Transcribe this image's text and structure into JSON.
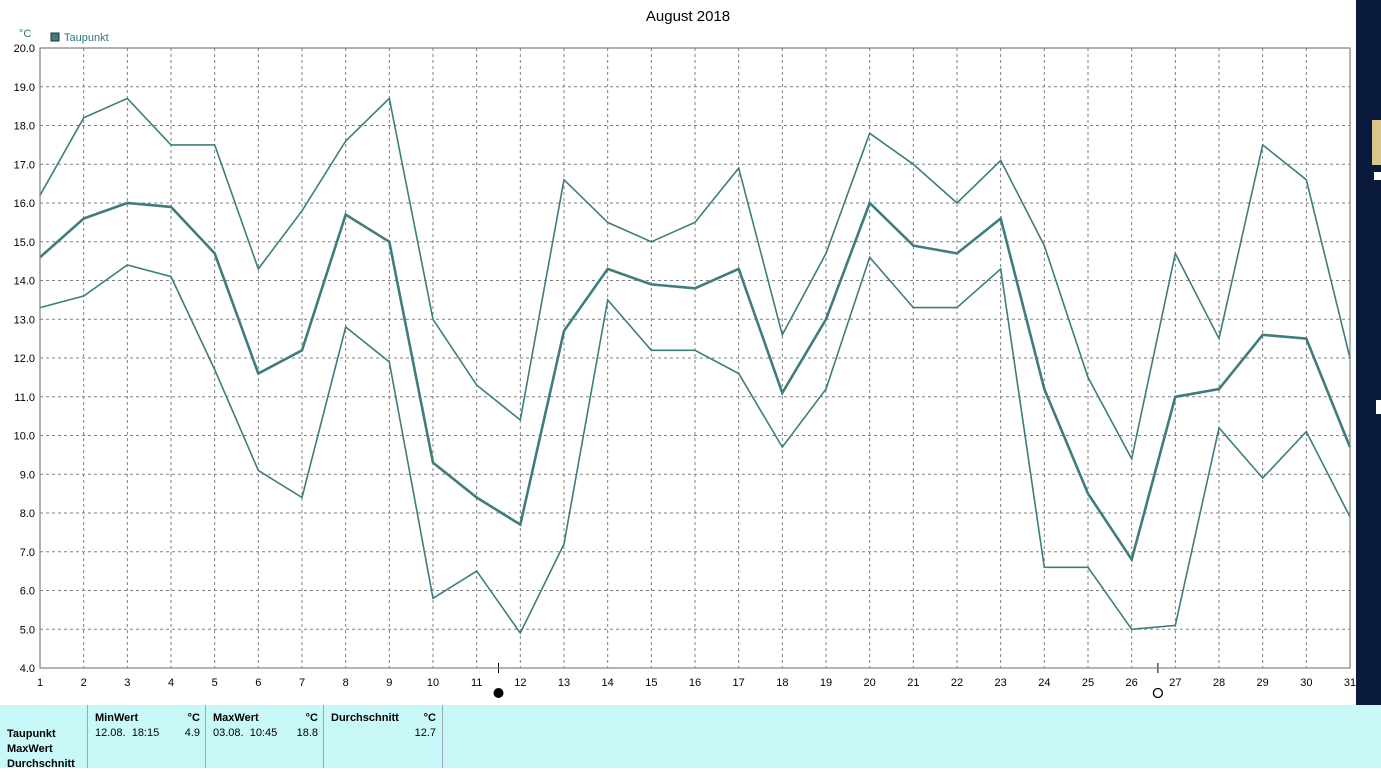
{
  "chart_data": {
    "type": "line",
    "title": "August 2018",
    "unit": "°C",
    "legend": [
      {
        "name": "Taupunkt",
        "color": "#3f7d7d"
      }
    ],
    "legend_position": "top-left",
    "x": [
      1,
      2,
      3,
      4,
      5,
      6,
      7,
      8,
      9,
      10,
      11,
      12,
      13,
      14,
      15,
      16,
      17,
      18,
      19,
      20,
      21,
      22,
      23,
      24,
      25,
      26,
      27,
      28,
      29,
      30,
      31
    ],
    "ylim": [
      4.0,
      20.0
    ],
    "y_ticks": [
      "4.0",
      "5.0",
      "6.0",
      "7.0",
      "8.0",
      "9.0",
      "10.0",
      "11.0",
      "12.0",
      "13.0",
      "14.0",
      "15.0",
      "16.0",
      "17.0",
      "18.0",
      "19.0",
      "20.0"
    ],
    "grid": true,
    "series": [
      {
        "role": "max",
        "values": [
          16.2,
          18.2,
          18.7,
          17.5,
          17.5,
          14.3,
          15.8,
          17.6,
          18.7,
          13.0,
          11.3,
          10.4,
          16.6,
          15.5,
          15.0,
          15.5,
          16.9,
          12.6,
          14.7,
          17.8,
          17.0,
          16.0,
          17.1,
          14.9,
          11.5,
          9.4,
          14.7,
          12.5,
          17.5,
          16.6,
          12.0
        ]
      },
      {
        "role": "mean",
        "values": [
          14.6,
          15.6,
          16.0,
          15.9,
          14.7,
          11.6,
          12.2,
          15.7,
          15.0,
          9.3,
          8.4,
          7.7,
          12.7,
          14.3,
          13.9,
          13.8,
          14.3,
          11.1,
          13.0,
          16.0,
          14.9,
          14.7,
          15.6,
          11.2,
          8.5,
          6.8,
          11.0,
          11.2,
          12.6,
          12.5,
          9.7
        ]
      },
      {
        "role": "min",
        "values": [
          13.3,
          13.6,
          14.4,
          14.1,
          11.7,
          9.1,
          8.4,
          12.8,
          11.9,
          5.8,
          6.5,
          4.9,
          7.2,
          13.5,
          12.2,
          12.2,
          11.6,
          9.7,
          11.2,
          14.6,
          13.3,
          13.3,
          14.3,
          6.6,
          6.6,
          5.0,
          5.1,
          10.2,
          8.9,
          10.1,
          7.9
        ]
      }
    ],
    "moon_phase_markers": [
      {
        "day": 11.5,
        "symbol": "●"
      },
      {
        "day": 26.6,
        "symbol": "○"
      }
    ]
  },
  "stats": {
    "row_labels": [
      "Taupunkt",
      "MaxWert",
      "Durchschnitt"
    ],
    "columns": [
      {
        "header": "MinWert",
        "unit": "°C",
        "datetime": "12.08.  18:15",
        "value": "4.9"
      },
      {
        "header": "MaxWert",
        "unit": "°C",
        "datetime": "03.08.  10:45",
        "value": "18.8"
      },
      {
        "header": "Durchschnitt",
        "unit": "°C",
        "datetime": "",
        "value": "12.7"
      }
    ]
  }
}
